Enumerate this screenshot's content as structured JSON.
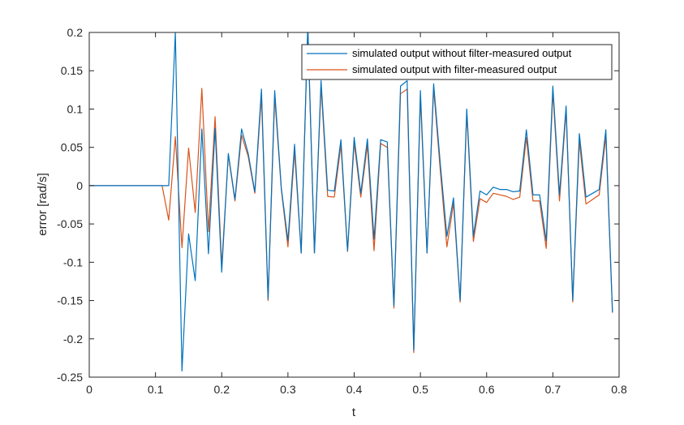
{
  "chart_data": {
    "type": "line",
    "title": "",
    "xlabel": "t",
    "ylabel": "error [rad/s]",
    "xlim": [
      0,
      0.8
    ],
    "ylim": [
      -0.25,
      0.2
    ],
    "xticks": [
      "0",
      "0.1",
      "0.2",
      "0.3",
      "0.4",
      "0.5",
      "0.6",
      "0.7",
      "0.8"
    ],
    "yticks": [
      "-0.25",
      "-0.2",
      "-0.15",
      "-0.1",
      "-0.05",
      "0",
      "0.05",
      "0.1",
      "0.15",
      "0.2"
    ],
    "grid": false,
    "legend_position": "top-right",
    "x": [
      0,
      0.01,
      0.02,
      0.03,
      0.04,
      0.05,
      0.06,
      0.07,
      0.08,
      0.09,
      0.1,
      0.11,
      0.12,
      0.13,
      0.14,
      0.15,
      0.16,
      0.17,
      0.18,
      0.19,
      0.2,
      0.21,
      0.22,
      0.23,
      0.24,
      0.25,
      0.26,
      0.27,
      0.28,
      0.29,
      0.3,
      0.31,
      0.32,
      0.33,
      0.34,
      0.35,
      0.36,
      0.37,
      0.38,
      0.39,
      0.4,
      0.41,
      0.42,
      0.43,
      0.44,
      0.45,
      0.46,
      0.47,
      0.48,
      0.49,
      0.5,
      0.51,
      0.52,
      0.53,
      0.54,
      0.55,
      0.56,
      0.57,
      0.58,
      0.59,
      0.6,
      0.61,
      0.62,
      0.63,
      0.64,
      0.65,
      0.66,
      0.67,
      0.68,
      0.69,
      0.7,
      0.71,
      0.72,
      0.73,
      0.74,
      0.75,
      0.76,
      0.77,
      0.78,
      0.79
    ],
    "series": [
      {
        "name": "simulated output without filter-measured output",
        "color": "#0072BD",
        "values": [
          0,
          0,
          0,
          0,
          0,
          0,
          0,
          0,
          0,
          0,
          0,
          0,
          0,
          0.2,
          -0.242,
          -0.063,
          -0.124,
          0.074,
          -0.089,
          0.075,
          -0.113,
          0.042,
          -0.018,
          0.074,
          0.042,
          -0.008,
          0.126,
          -0.148,
          0.124,
          -0.003,
          -0.072,
          0.054,
          -0.088,
          0.21,
          -0.088,
          0.137,
          -0.006,
          -0.007,
          0.06,
          -0.085,
          0.063,
          -0.01,
          0.061,
          -0.07,
          0.06,
          0.057,
          -0.157,
          0.13,
          0.137,
          -0.215,
          0.124,
          -0.088,
          0.133,
          0.029,
          -0.066,
          -0.016,
          -0.15,
          0.1,
          -0.066,
          -0.007,
          -0.012,
          -0.002,
          -0.005,
          -0.005,
          -0.008,
          -0.007,
          0.073,
          -0.012,
          -0.012,
          -0.072,
          0.13,
          -0.012,
          0.104,
          -0.15,
          0.068,
          -0.015,
          -0.01,
          -0.005,
          0.073,
          -0.165
        ]
      },
      {
        "name": "simulated output with filter-measured output",
        "color": "#D95319",
        "values": [
          0,
          0,
          0,
          0,
          0,
          0,
          0,
          0,
          0,
          0,
          0,
          0,
          -0.045,
          0.064,
          -0.081,
          0.049,
          -0.035,
          0.127,
          -0.06,
          0.09,
          -0.105,
          0.04,
          -0.02,
          0.066,
          0.038,
          -0.01,
          0.117,
          -0.15,
          0.116,
          -0.005,
          -0.08,
          0.045,
          -0.088,
          0.205,
          -0.088,
          0.13,
          -0.014,
          -0.015,
          0.053,
          -0.086,
          0.056,
          -0.015,
          0.053,
          -0.085,
          0.055,
          0.05,
          -0.16,
          0.12,
          0.126,
          -0.218,
          0.116,
          -0.088,
          0.127,
          0.02,
          -0.08,
          -0.023,
          -0.152,
          0.095,
          -0.073,
          -0.017,
          -0.022,
          -0.01,
          -0.012,
          -0.014,
          -0.018,
          -0.015,
          0.063,
          -0.02,
          -0.02,
          -0.082,
          0.123,
          -0.02,
          0.098,
          -0.152,
          0.058,
          -0.024,
          -0.018,
          -0.012,
          0.065,
          -0.166
        ]
      }
    ]
  }
}
